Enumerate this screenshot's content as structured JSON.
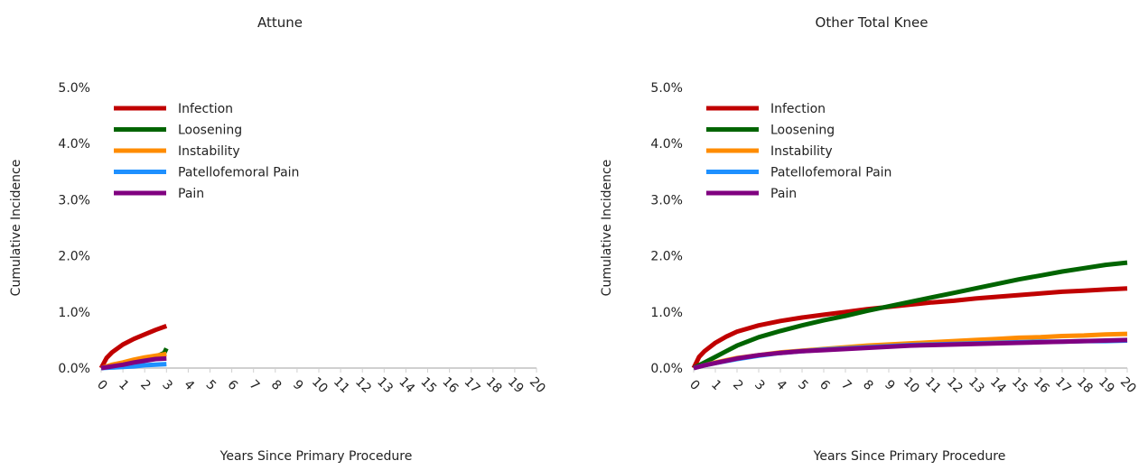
{
  "chart_data": [
    {
      "type": "line",
      "title": "Attune",
      "xlabel": "Years Since Primary Procedure",
      "ylabel": "Cumulative Incidence",
      "xlim": [
        0,
        20
      ],
      "ylim": [
        0,
        5
      ],
      "x_ticks": [
        "0",
        "1",
        "2",
        "3",
        "4",
        "5",
        "6",
        "7",
        "8",
        "9",
        "10",
        "11",
        "12",
        "13",
        "14",
        "15",
        "16",
        "17",
        "18",
        "19",
        "20"
      ],
      "y_ticks": [
        "0.0%",
        "1.0%",
        "2.0%",
        "3.0%",
        "4.0%",
        "5.0%"
      ],
      "legend_position": "top-left",
      "series": [
        {
          "name": "Infection",
          "color": "#C00000",
          "x": [
            0,
            0.25,
            0.5,
            1,
            1.5,
            2,
            2.5,
            3
          ],
          "y": [
            0,
            0.18,
            0.28,
            0.42,
            0.52,
            0.6,
            0.68,
            0.75
          ]
        },
        {
          "name": "Loosening",
          "color": "#006400",
          "x": [
            0,
            0.5,
            1,
            1.5,
            2,
            2.5,
            2.9,
            3
          ],
          "y": [
            0,
            0.04,
            0.08,
            0.12,
            0.16,
            0.2,
            0.27,
            0.35
          ]
        },
        {
          "name": "Instability",
          "color": "#FF8C00",
          "x": [
            0,
            0.5,
            1,
            1.5,
            2,
            2.5,
            3
          ],
          "y": [
            0,
            0.06,
            0.1,
            0.15,
            0.19,
            0.22,
            0.25
          ]
        },
        {
          "name": "Patellofemoral Pain",
          "color": "#1E90FF",
          "x": [
            0,
            0.5,
            1,
            1.5,
            2,
            2.5,
            3
          ],
          "y": [
            0,
            0.01,
            0.02,
            0.03,
            0.05,
            0.06,
            0.07
          ]
        },
        {
          "name": "Pain",
          "color": "#800080",
          "x": [
            0,
            0.5,
            1,
            1.5,
            2,
            2.5,
            3
          ],
          "y": [
            0,
            0.03,
            0.06,
            0.1,
            0.13,
            0.16,
            0.17
          ]
        }
      ]
    },
    {
      "type": "line",
      "title": "Other Total Knee",
      "xlabel": "Years Since Primary Procedure",
      "ylabel": "Cumulative Incidence",
      "xlim": [
        0,
        20
      ],
      "ylim": [
        0,
        5
      ],
      "x_ticks": [
        "0",
        "1",
        "2",
        "3",
        "4",
        "5",
        "6",
        "7",
        "8",
        "9",
        "10",
        "11",
        "12",
        "13",
        "14",
        "15",
        "16",
        "17",
        "18",
        "19",
        "20"
      ],
      "y_ticks": [
        "0.0%",
        "1.0%",
        "2.0%",
        "3.0%",
        "4.0%",
        "5.0%"
      ],
      "legend_position": "top-left",
      "series": [
        {
          "name": "Infection",
          "color": "#C00000",
          "x": [
            0,
            0.25,
            0.5,
            1,
            1.5,
            2,
            3,
            4,
            5,
            6,
            7,
            8,
            9,
            10,
            11,
            12,
            13,
            14,
            15,
            16,
            17,
            18,
            19,
            20
          ],
          "y": [
            0,
            0.2,
            0.3,
            0.45,
            0.56,
            0.65,
            0.76,
            0.84,
            0.9,
            0.95,
            1.0,
            1.05,
            1.09,
            1.13,
            1.17,
            1.2,
            1.24,
            1.27,
            1.3,
            1.33,
            1.36,
            1.38,
            1.4,
            1.42
          ]
        },
        {
          "name": "Loosening",
          "color": "#006400",
          "x": [
            0,
            0.5,
            1,
            1.5,
            2,
            3,
            4,
            5,
            6,
            7,
            8,
            9,
            10,
            11,
            12,
            13,
            14,
            15,
            16,
            17,
            18,
            19,
            20
          ],
          "y": [
            0,
            0.1,
            0.2,
            0.3,
            0.4,
            0.55,
            0.66,
            0.76,
            0.85,
            0.93,
            1.02,
            1.1,
            1.18,
            1.26,
            1.34,
            1.42,
            1.5,
            1.58,
            1.65,
            1.72,
            1.78,
            1.84,
            1.88
          ]
        },
        {
          "name": "Instability",
          "color": "#FF8C00",
          "x": [
            0,
            0.5,
            1,
            2,
            3,
            4,
            5,
            6,
            7,
            8,
            9,
            10,
            11,
            12,
            13,
            14,
            15,
            16,
            17,
            18,
            19,
            20
          ],
          "y": [
            0,
            0.05,
            0.1,
            0.18,
            0.23,
            0.28,
            0.31,
            0.34,
            0.37,
            0.4,
            0.42,
            0.44,
            0.46,
            0.48,
            0.5,
            0.52,
            0.54,
            0.55,
            0.57,
            0.58,
            0.6,
            0.61
          ]
        },
        {
          "name": "Patellofemoral Pain",
          "color": "#1E90FF",
          "x": [
            0,
            0.5,
            1,
            2,
            3,
            4,
            5,
            6,
            7,
            8,
            9,
            10,
            11,
            12,
            13,
            14,
            15,
            16,
            17,
            18,
            19,
            20
          ],
          "y": [
            0,
            0.05,
            0.09,
            0.16,
            0.22,
            0.27,
            0.3,
            0.33,
            0.35,
            0.37,
            0.39,
            0.41,
            0.42,
            0.43,
            0.44,
            0.45,
            0.46,
            0.47,
            0.47,
            0.48,
            0.48,
            0.49
          ]
        },
        {
          "name": "Pain",
          "color": "#800080",
          "x": [
            0,
            0.5,
            1,
            2,
            3,
            4,
            5,
            6,
            7,
            8,
            9,
            10,
            11,
            12,
            13,
            14,
            15,
            16,
            17,
            18,
            19,
            20
          ],
          "y": [
            0,
            0.05,
            0.09,
            0.17,
            0.23,
            0.27,
            0.3,
            0.32,
            0.34,
            0.36,
            0.38,
            0.4,
            0.41,
            0.42,
            0.43,
            0.44,
            0.45,
            0.46,
            0.47,
            0.48,
            0.49,
            0.5
          ]
        }
      ]
    }
  ]
}
